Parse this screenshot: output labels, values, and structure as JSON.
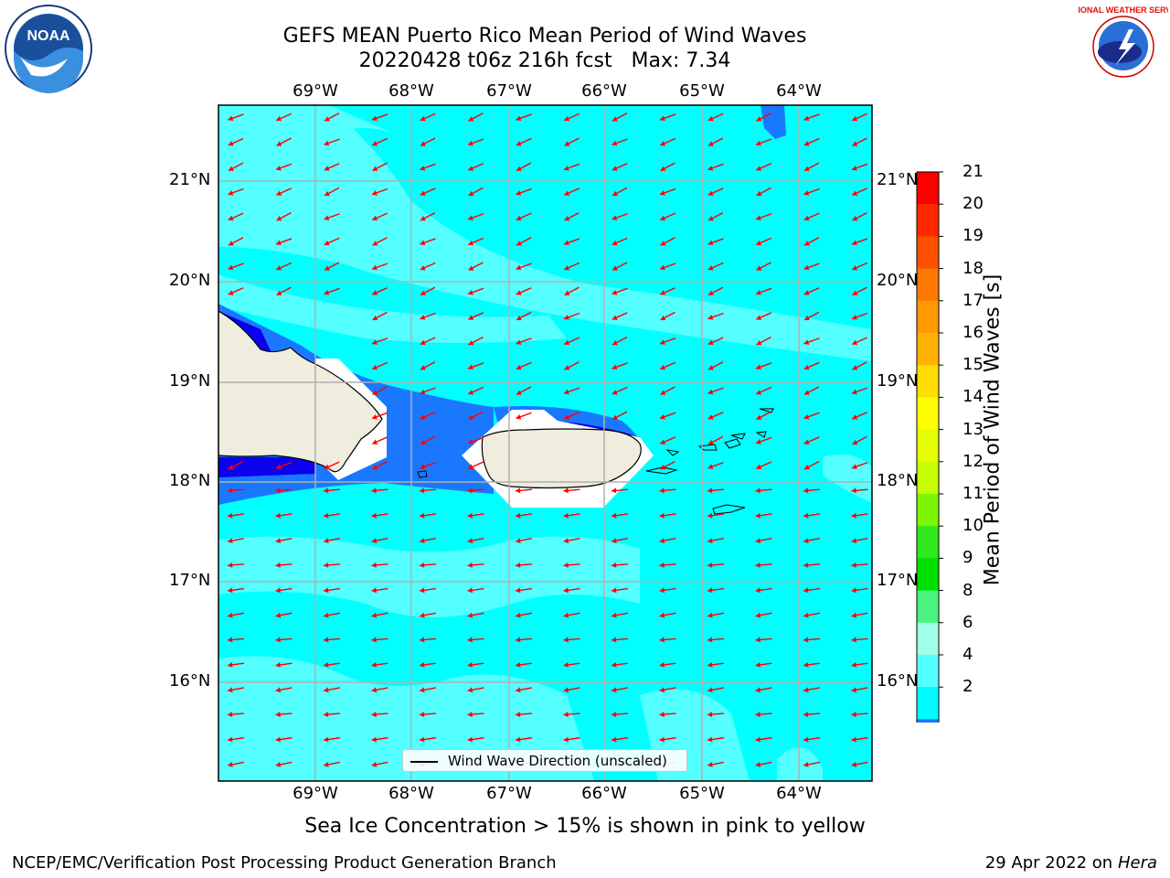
{
  "title": {
    "line1": "GEFS MEAN Puerto Rico Mean Period of Wind Waves",
    "line2": "20220428 t06z 216h fcst   Max: 7.34"
  },
  "subtitle": "Sea Ice Concentration > 15% is shown in pink to yellow",
  "footer": {
    "left": "NCEP/EMC/Verification Post Processing Product Generation Branch",
    "right_prefix": "29 Apr 2022 on ",
    "right_machine": "Hera"
  },
  "logos": {
    "left": {
      "icon": "noaa-logo",
      "text": "NOAA"
    },
    "right": {
      "icon": "national-weather-service-logo",
      "text": "NATIONAL WEATHER SERVICE"
    }
  },
  "map": {
    "lon_labels": [
      "69°W",
      "68°W",
      "67°W",
      "66°W",
      "65°W",
      "64°W"
    ],
    "lat_labels": [
      "21°N",
      "20°N",
      "19°N",
      "18°N",
      "17°N",
      "16°N"
    ],
    "legend_label": "Wind Wave Direction (unscaled)",
    "arrow_color": "#ff0000",
    "land_color": "#efedde",
    "ocean_base_color": "#00ffff"
  },
  "colorbar": {
    "label": "Mean Period of Wind Waves [s]",
    "tick_labels": [
      "21",
      "20",
      "19",
      "18",
      "17",
      "16",
      "15",
      "14",
      "13",
      "12",
      "11",
      "10",
      "9",
      "8",
      "6",
      "4",
      "2"
    ],
    "colors": [
      "#ff0000",
      "#ff2800",
      "#ff5000",
      "#ff7800",
      "#ff9900",
      "#ffb300",
      "#ffdd00",
      "#ffff00",
      "#e6ff00",
      "#c8ff00",
      "#7cf500",
      "#2ee81c",
      "#00e000",
      "#4cf27e",
      "#a0ffe8",
      "#54ffff",
      "#00fbff",
      "#1a78ff",
      "#0a00ee"
    ]
  }
}
